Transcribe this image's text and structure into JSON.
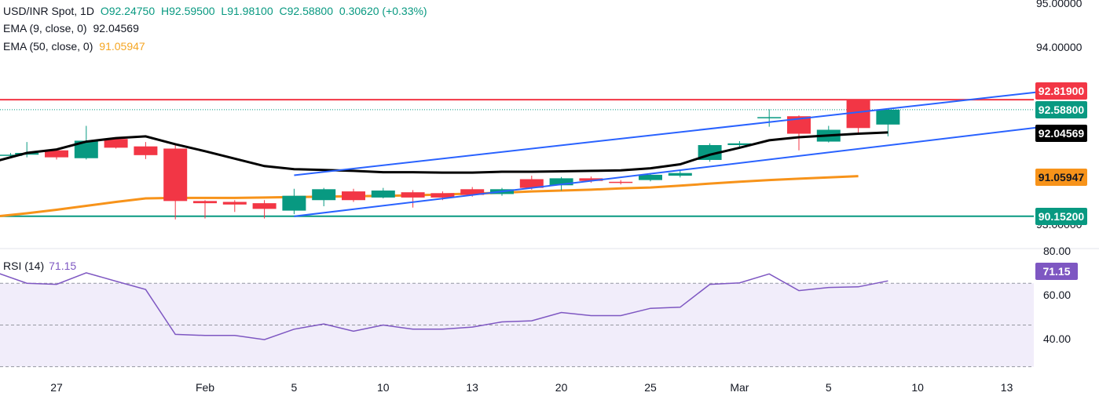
{
  "header": {
    "symbol": "USD/INR Spot, 1D",
    "open": "O92.24750",
    "high": "H92.59500",
    "low": "L91.98100",
    "close": "C92.58800",
    "change": "0.30620 (+0.33%)",
    "ema9_label": "EMA (9, close, 0)",
    "ema9_value": "92.04569",
    "ema50_label": "EMA (50, close, 0)",
    "ema50_value": "91.05947"
  },
  "rsi_legend": {
    "label": "RSI (14)",
    "value": "71.15"
  },
  "colors": {
    "up": "#089981",
    "down": "#f23645",
    "ema9": "#000000",
    "ema50": "#f7931a",
    "channel": "#2962ff",
    "resistance": "#f23645",
    "support": "#089981",
    "rsi": "#7e57c2"
  },
  "price_ticks": [
    "95.00000",
    "94.00000",
    "93.00000"
  ],
  "rsi_ticks": [
    "80.00",
    "60.00",
    "40.00"
  ],
  "tags": {
    "resistance": "92.81900",
    "close": "92.58800",
    "ema9": "92.04569",
    "ema50": "91.05947",
    "support": "90.15200",
    "rsi": "71.15"
  },
  "chart_data": {
    "type": "candlestick",
    "title": "USD/INR Spot, 1D",
    "x_ticks": [
      {
        "i": 0,
        "label": "27"
      },
      {
        "i": 5,
        "label": "Feb"
      },
      {
        "i": 8,
        "label": "5"
      },
      {
        "i": 11,
        "label": "10"
      },
      {
        "i": 14,
        "label": "13"
      },
      {
        "i": 17,
        "label": "20"
      },
      {
        "i": 20,
        "label": "25"
      },
      {
        "i": 23,
        "label": "Mar"
      },
      {
        "i": 26,
        "label": "5"
      },
      {
        "i": 29,
        "label": "10"
      },
      {
        "i": 32,
        "label": "13"
      }
    ],
    "ylim": [
      89.95,
      95.1
    ],
    "candles": [
      {
        "i": -1.55,
        "o": 91.56,
        "c": 91.56,
        "h": 91.6,
        "l": 91.52
      },
      {
        "i": -1.0,
        "o": 91.56,
        "c": 91.6,
        "h": 91.85,
        "l": 91.5
      },
      {
        "i": 0.0,
        "o": 91.66,
        "c": 91.5,
        "h": 91.7,
        "l": 91.45
      },
      {
        "i": 1.0,
        "o": 91.48,
        "c": 91.88,
        "h": 92.22,
        "l": 91.45
      },
      {
        "i": 2.0,
        "o": 91.92,
        "c": 91.72,
        "h": 91.95,
        "l": 91.7
      },
      {
        "i": 3.0,
        "o": 91.75,
        "c": 91.55,
        "h": 91.85,
        "l": 91.46
      },
      {
        "i": 4.0,
        "o": 91.7,
        "c": 90.5,
        "h": 91.8,
        "l": 90.08
      },
      {
        "i": 5.0,
        "o": 90.5,
        "c": 90.45,
        "h": 90.52,
        "l": 90.1
      },
      {
        "i": 6.0,
        "o": 90.48,
        "c": 90.42,
        "h": 90.52,
        "l": 90.25
      },
      {
        "i": 7.0,
        "o": 90.45,
        "c": 90.32,
        "h": 90.52,
        "l": 90.1
      },
      {
        "i": 8.0,
        "o": 90.28,
        "c": 90.62,
        "h": 90.78,
        "l": 90.2
      },
      {
        "i": 9.0,
        "o": 90.52,
        "c": 90.77,
        "h": 90.8,
        "l": 90.38
      },
      {
        "i": 10.0,
        "o": 90.72,
        "c": 90.52,
        "h": 90.78,
        "l": 90.48
      },
      {
        "i": 11.0,
        "o": 90.58,
        "c": 90.74,
        "h": 90.8,
        "l": 90.56
      },
      {
        "i": 12.0,
        "o": 90.7,
        "c": 90.58,
        "h": 90.75,
        "l": 90.35
      },
      {
        "i": 13.0,
        "o": 90.68,
        "c": 90.58,
        "h": 90.72,
        "l": 90.52
      },
      {
        "i": 14.0,
        "o": 90.77,
        "c": 90.64,
        "h": 90.82,
        "l": 90.6
      },
      {
        "i": 15.0,
        "o": 90.66,
        "c": 90.77,
        "h": 90.8,
        "l": 90.62
      },
      {
        "i": 16.0,
        "o": 91.0,
        "c": 90.8,
        "h": 91.08,
        "l": 90.76
      },
      {
        "i": 17.0,
        "o": 90.86,
        "c": 91.02,
        "h": 91.05,
        "l": 90.74
      },
      {
        "i": 18.0,
        "o": 91.02,
        "c": 90.96,
        "h": 91.06,
        "l": 90.92
      },
      {
        "i": 19.0,
        "o": 90.94,
        "c": 90.93,
        "h": 90.98,
        "l": 90.88
      },
      {
        "i": 20.0,
        "o": 90.98,
        "c": 91.1,
        "h": 91.14,
        "l": 90.95
      },
      {
        "i": 21.0,
        "o": 91.08,
        "c": 91.14,
        "h": 91.2,
        "l": 91.04
      },
      {
        "i": 22.0,
        "o": 91.44,
        "c": 91.78,
        "h": 91.82,
        "l": 91.4
      },
      {
        "i": 23.0,
        "o": 91.78,
        "c": 91.82,
        "h": 91.87,
        "l": 91.74
      },
      {
        "i": 24.0,
        "o": 92.4,
        "c": 92.42,
        "h": 92.6,
        "l": 92.2
      },
      {
        "i": 25.0,
        "o": 92.44,
        "c": 92.04,
        "h": 92.46,
        "l": 91.66
      },
      {
        "i": 26.0,
        "o": 91.86,
        "c": 92.13,
        "h": 92.22,
        "l": 91.84
      },
      {
        "i": 27.0,
        "o": 92.82,
        "c": 92.17,
        "h": 92.82,
        "l": 92.06
      },
      {
        "i": 28.0,
        "o": 92.25,
        "c": 92.59,
        "h": 92.6,
        "l": 91.98
      }
    ],
    "series": [
      {
        "name": "EMA (9, close, 0)",
        "points": [
          [
            -2.0,
            91.42
          ],
          [
            -1.0,
            91.6
          ],
          [
            0.0,
            91.68
          ],
          [
            1.0,
            91.86
          ],
          [
            2.0,
            91.94
          ],
          [
            3.0,
            91.98
          ],
          [
            4.0,
            91.8
          ],
          [
            5.0,
            91.64
          ],
          [
            6.0,
            91.47
          ],
          [
            7.0,
            91.3
          ],
          [
            8.0,
            91.23
          ],
          [
            9.0,
            91.21
          ],
          [
            10.0,
            91.19
          ],
          [
            11.0,
            91.16
          ],
          [
            12.0,
            91.16
          ],
          [
            13.0,
            91.15
          ],
          [
            14.0,
            91.15
          ],
          [
            15.0,
            91.17
          ],
          [
            16.0,
            91.17
          ],
          [
            17.0,
            91.18
          ],
          [
            18.0,
            91.19
          ],
          [
            19.0,
            91.2
          ],
          [
            20.0,
            91.25
          ],
          [
            21.0,
            91.34
          ],
          [
            22.0,
            91.56
          ],
          [
            23.0,
            91.72
          ],
          [
            24.0,
            91.89
          ],
          [
            25.0,
            91.96
          ],
          [
            26.0,
            92.0
          ],
          [
            27.0,
            92.04
          ],
          [
            28.0,
            92.07
          ]
        ]
      },
      {
        "name": "EMA (50, close, 0)",
        "points": [
          [
            -2.0,
            90.15
          ],
          [
            -1.0,
            90.22
          ],
          [
            0.0,
            90.3
          ],
          [
            1.0,
            90.39
          ],
          [
            2.0,
            90.48
          ],
          [
            3.0,
            90.56
          ],
          [
            4.0,
            90.57
          ],
          [
            5.0,
            90.57
          ],
          [
            6.0,
            90.57
          ],
          [
            7.0,
            90.58
          ],
          [
            8.0,
            90.59
          ],
          [
            9.0,
            90.6
          ],
          [
            10.0,
            90.61
          ],
          [
            11.0,
            90.62
          ],
          [
            12.0,
            90.63
          ],
          [
            13.0,
            90.65
          ],
          [
            14.0,
            90.67
          ],
          [
            15.0,
            90.69
          ],
          [
            16.0,
            90.72
          ],
          [
            17.0,
            90.74
          ],
          [
            18.0,
            90.76
          ],
          [
            19.0,
            90.79
          ],
          [
            20.0,
            90.81
          ],
          [
            21.0,
            90.85
          ],
          [
            22.0,
            90.9
          ],
          [
            23.0,
            90.94
          ],
          [
            24.0,
            90.98
          ],
          [
            25.0,
            91.01
          ],
          [
            26.0,
            91.04
          ],
          [
            27.0,
            91.07
          ]
        ]
      }
    ],
    "lines": [
      {
        "name": "resistance",
        "y": 92.819
      },
      {
        "name": "support",
        "y": 90.152
      },
      {
        "name": "channel-upper",
        "from": [
          8.0,
          91.09
        ],
        "to": [
          33.0,
          92.99
        ]
      },
      {
        "name": "channel-lower",
        "from": [
          8.0,
          90.15
        ],
        "to": [
          33.0,
          92.18
        ]
      }
    ],
    "rsi": {
      "name": "RSI (14)",
      "ylim": [
        26.5,
        85.5
      ],
      "overbought": 70,
      "middle": 50,
      "oversold": 30,
      "points": [
        [
          -2.0,
          75
        ],
        [
          -1.0,
          70
        ],
        [
          0.0,
          69.5
        ],
        [
          1.0,
          75
        ],
        [
          2.0,
          71
        ],
        [
          3.0,
          67
        ],
        [
          4.0,
          45.5
        ],
        [
          5.0,
          45
        ],
        [
          6.0,
          45
        ],
        [
          7.0,
          43
        ],
        [
          8.0,
          48
        ],
        [
          9.0,
          50.5
        ],
        [
          10.0,
          47
        ],
        [
          11.0,
          50
        ],
        [
          12.0,
          48
        ],
        [
          13.0,
          48
        ],
        [
          14.0,
          49
        ],
        [
          15.0,
          51.5
        ],
        [
          16.0,
          52
        ],
        [
          17.0,
          56
        ],
        [
          18.0,
          54.5
        ],
        [
          19.0,
          54.5
        ],
        [
          20.0,
          58
        ],
        [
          21.0,
          58.5
        ],
        [
          22.0,
          69.5
        ],
        [
          23.0,
          70.2
        ],
        [
          24.0,
          74.5
        ],
        [
          25.0,
          66.5
        ],
        [
          26.0,
          68
        ],
        [
          27.0,
          68.3
        ],
        [
          28.0,
          71.15
        ]
      ]
    }
  }
}
